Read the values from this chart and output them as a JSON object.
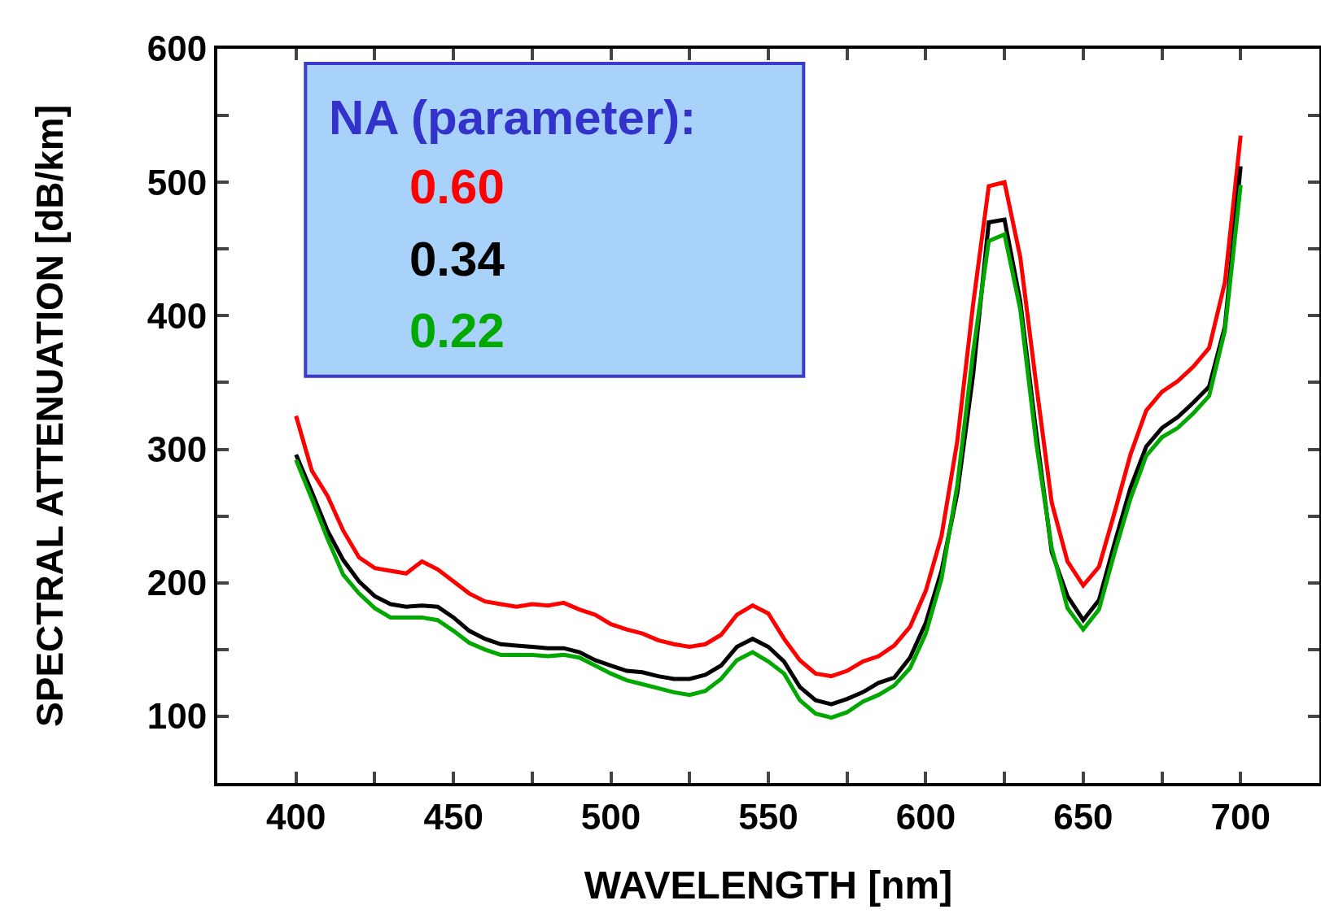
{
  "chart_data": {
    "type": "line",
    "xlabel": "WAVELENGTH [nm]",
    "ylabel": "SPECTRAL ATTENUATION [dB/km]",
    "legend_title": "NA (parameter):",
    "legend": "top left",
    "grid": false,
    "marker": "none",
    "line_style": "solid",
    "x": [
      400,
      405,
      410,
      415,
      420,
      425,
      430,
      435,
      440,
      445,
      450,
      455,
      460,
      465,
      470,
      475,
      480,
      485,
      490,
      495,
      500,
      505,
      510,
      515,
      520,
      525,
      530,
      535,
      540,
      545,
      550,
      555,
      560,
      565,
      570,
      575,
      580,
      585,
      590,
      595,
      600,
      605,
      610,
      615,
      620,
      625,
      630,
      635,
      640,
      645,
      650,
      655,
      660,
      665,
      670,
      675,
      680,
      685,
      690,
      695,
      700
    ],
    "xlim": [
      375,
      725
    ],
    "xticks": [
      400,
      {
        "value": 425,
        "label": null
      },
      450,
      {
        "value": 475,
        "label": null
      },
      500,
      {
        "value": 525,
        "label": null
      },
      550,
      {
        "value": 575,
        "label": null
      },
      600,
      {
        "value": 625,
        "label": null
      },
      650,
      {
        "value": 675,
        "label": null
      },
      700
    ],
    "ylim": [
      50,
      600
    ],
    "yticks": [
      100,
      {
        "value": 150,
        "label": null
      },
      200,
      {
        "value": 250,
        "label": null
      },
      300,
      {
        "value": 350,
        "label": null
      },
      400,
      {
        "value": 450,
        "label": null
      },
      500,
      {
        "value": 550,
        "label": null
      },
      600
    ],
    "series": [
      {
        "name": "0.60",
        "color": "#ff0000",
        "values": [
          325,
          284,
          265,
          239,
          219,
          211,
          209,
          207,
          216,
          210,
          201,
          192,
          186,
          184,
          182,
          184,
          183,
          185,
          180,
          176,
          169,
          165,
          162,
          157,
          154,
          152,
          154,
          161,
          176,
          183,
          177,
          158,
          142,
          132,
          130,
          134,
          141,
          145,
          153,
          167,
          194,
          235,
          306,
          408,
          497,
          500,
          444,
          350,
          260,
          216,
          198,
          212,
          253,
          296,
          329,
          343,
          351,
          362,
          376,
          425,
          535
        ]
      },
      {
        "name": "0.34",
        "color": "#000000",
        "values": [
          296,
          268,
          239,
          217,
          201,
          190,
          184,
          182,
          183,
          182,
          174,
          164,
          158,
          154,
          153,
          152,
          151,
          151,
          148,
          142,
          138,
          134,
          133,
          130,
          128,
          128,
          131,
          138,
          152,
          158,
          152,
          141,
          122,
          112,
          109,
          113,
          118,
          125,
          129,
          144,
          170,
          209,
          267,
          355,
          470,
          472,
          411,
          314,
          223,
          190,
          172,
          187,
          230,
          271,
          302,
          316,
          324,
          335,
          347,
          392,
          512
        ]
      },
      {
        "name": "0.22",
        "color": "#00a800",
        "values": [
          292,
          263,
          233,
          206,
          192,
          181,
          174,
          174,
          174,
          172,
          164,
          155,
          150,
          146,
          146,
          146,
          145,
          146,
          144,
          138,
          132,
          127,
          124,
          121,
          118,
          116,
          119,
          128,
          142,
          148,
          141,
          132,
          112,
          102,
          99,
          103,
          111,
          116,
          123,
          136,
          162,
          203,
          273,
          372,
          456,
          461,
          405,
          306,
          226,
          181,
          165,
          180,
          223,
          263,
          295,
          309,
          316,
          327,
          340,
          389,
          498
        ]
      }
    ]
  }
}
